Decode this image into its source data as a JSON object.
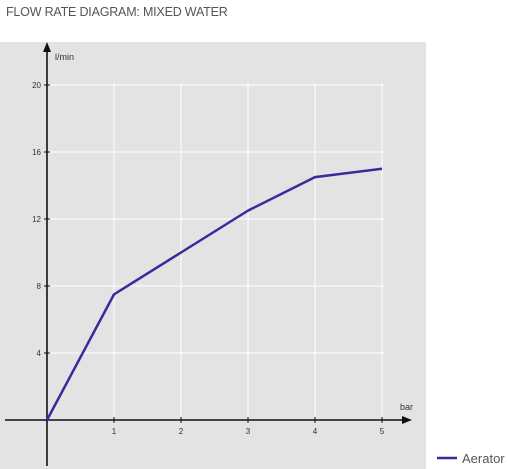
{
  "page": {
    "title": "FLOW RATE DIAGRAM: MIXED WATER"
  },
  "chart_data": {
    "type": "line",
    "title": "FLOW RATE DIAGRAM: MIXED WATER",
    "xlabel": "bar",
    "ylabel": "l/min",
    "xlim": [
      0,
      5
    ],
    "ylim": [
      0,
      20
    ],
    "x_ticks": [
      1,
      2,
      3,
      4,
      5
    ],
    "y_ticks": [
      4,
      8,
      12,
      16,
      20
    ],
    "grid": true,
    "legend": "bottom-right",
    "series": [
      {
        "name": "Aerator",
        "color": "#3a2a9c",
        "x": [
          0,
          1,
          2,
          3,
          4,
          5
        ],
        "y": [
          0,
          7.5,
          10,
          12.5,
          14.5,
          15
        ]
      }
    ]
  }
}
